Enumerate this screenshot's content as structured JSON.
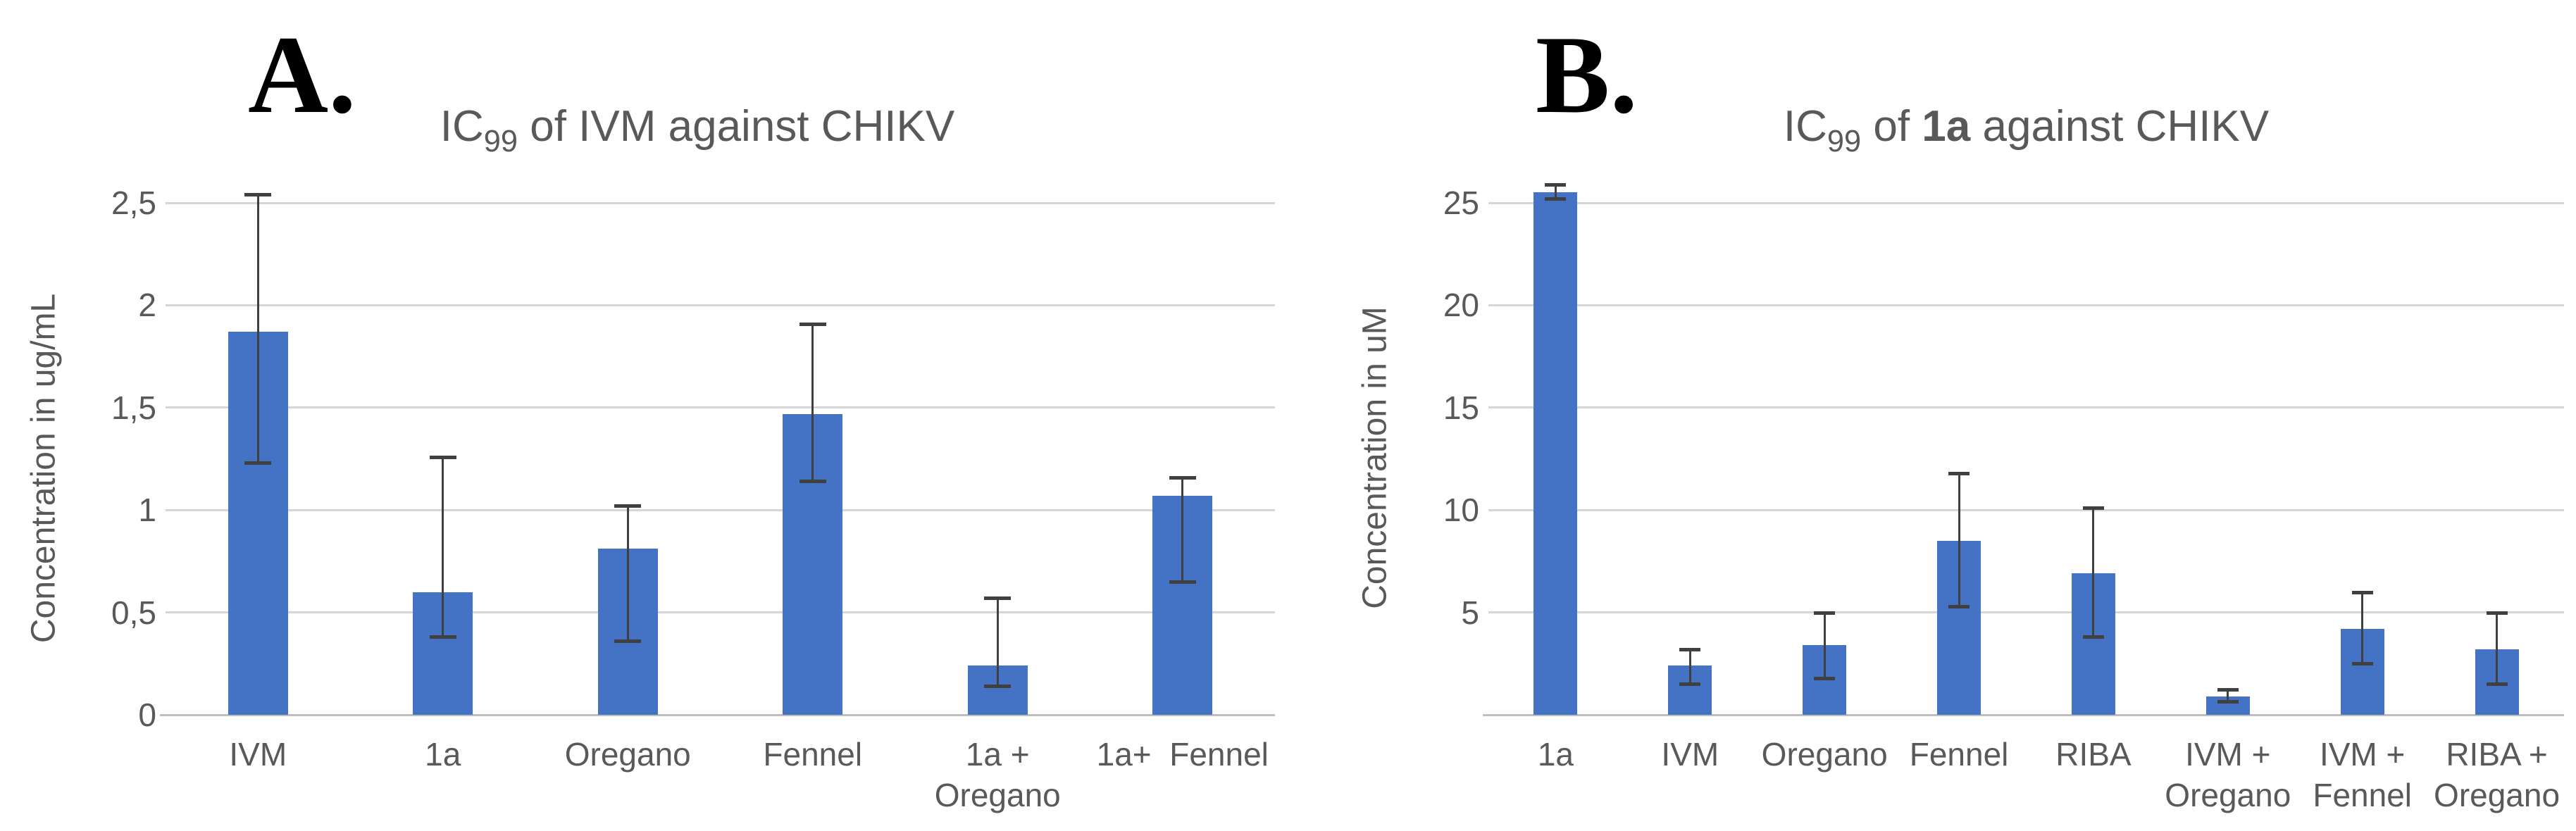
{
  "figure": {
    "background_color": "#ffffff",
    "bar_color": "#4472C4",
    "gridline_color": "#D6D6D6",
    "axis_line_color": "#BFBFBF",
    "error_bar_color": "#404040",
    "text_color": "#595959",
    "panel_letter_color": "#000000"
  },
  "chart_data": [
    {
      "type": "bar",
      "panel_letter": "A.",
      "title": "IC99 of IVM against CHIKV",
      "title_parts": [
        {
          "t": "IC"
        },
        {
          "t": "99",
          "sub": true
        },
        {
          "t": " of IVM against CHIKV"
        }
      ],
      "xlabel": "",
      "ylabel": "Concentration in ug/mL",
      "ylim": [
        0,
        2.5
      ],
      "grid": true,
      "legend": "none",
      "yticks": [
        {
          "label": "2,5",
          "value": 2.5
        },
        {
          "label": "2",
          "value": 2
        },
        {
          "label": "1,5",
          "value": 1.5
        },
        {
          "label": "1",
          "value": 1
        },
        {
          "label": "0,5",
          "value": 0.5
        },
        {
          "label": "0",
          "value": 0
        }
      ],
      "categories": [
        "IVM",
        "1a",
        "Oregano",
        "Fennel",
        "1a + Oregano",
        "1a+ Fennel"
      ],
      "category_lines": [
        [
          "IVM"
        ],
        [
          "1a"
        ],
        [
          "Oregano"
        ],
        [
          "Fennel"
        ],
        [
          "1a +",
          "Oregano"
        ],
        [
          "1a+  Fennel"
        ]
      ],
      "values": [
        1.87,
        0.6,
        0.81,
        1.47,
        0.24,
        1.07
      ],
      "error_low": [
        1.23,
        0.38,
        0.36,
        1.14,
        0.14,
        0.65
      ],
      "error_high": [
        2.54,
        1.26,
        1.02,
        1.91,
        0.57,
        1.16
      ]
    },
    {
      "type": "bar",
      "panel_letter": "B.",
      "title": "IC99 of 1a against CHIKV",
      "title_parts": [
        {
          "t": "IC"
        },
        {
          "t": "99",
          "sub": true
        },
        {
          "t": " of "
        },
        {
          "t": "1a",
          "bold": true
        },
        {
          "t": " against CHIKV"
        }
      ],
      "xlabel": "",
      "ylabel": "Concentration in uM",
      "ylim": [
        0,
        25
      ],
      "grid": true,
      "legend": "none",
      "yticks": [
        {
          "label": "25",
          "value": 25
        },
        {
          "label": "20",
          "value": 20
        },
        {
          "label": "15",
          "value": 15
        },
        {
          "label": "10",
          "value": 10
        },
        {
          "label": "5",
          "value": 5
        }
      ],
      "categories": [
        "1a",
        "IVM",
        "Oregano",
        "Fennel",
        "RIBA",
        "IVM + Oregano",
        "IVM + Fennel",
        "RIBA + Oregano"
      ],
      "category_lines": [
        [
          "1a"
        ],
        [
          "IVM"
        ],
        [
          "Oregano"
        ],
        [
          "Fennel"
        ],
        [
          "RIBA"
        ],
        [
          "IVM +",
          "Oregano"
        ],
        [
          "IVM +",
          "Fennel"
        ],
        [
          "RIBA +",
          "Oregano"
        ]
      ],
      "values": [
        25.5,
        2.4,
        3.4,
        8.5,
        6.9,
        0.9,
        4.2,
        3.2
      ],
      "error_low": [
        25.2,
        1.5,
        1.8,
        5.3,
        3.8,
        0.65,
        2.5,
        1.5
      ],
      "error_high": [
        25.9,
        3.2,
        5.0,
        11.8,
        10.1,
        1.25,
        6.0,
        5.0
      ]
    }
  ]
}
